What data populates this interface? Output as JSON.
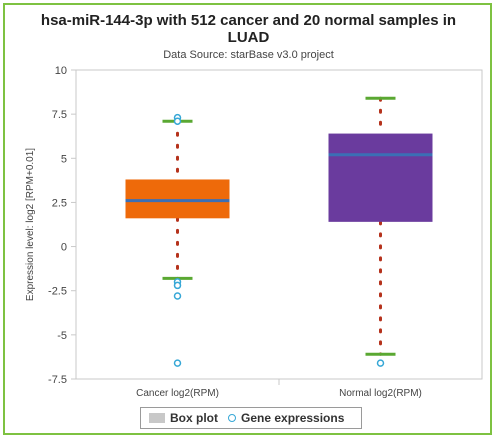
{
  "chart_data": {
    "type": "box",
    "title_lines": [
      "hsa-miR-144-3p with 512 cancer and 20 normal samples in",
      "LUAD"
    ],
    "subtitle": "Data Source: starBase v3.0 project",
    "ylabel": "Expression level: log2 [RPM+0.01]",
    "ylim": [
      -7.5,
      10
    ],
    "yticks": [
      "10",
      "7.5",
      "5",
      "2.5",
      "0",
      "-2.5",
      "-5",
      "-7.5"
    ],
    "ytick_values": [
      10,
      7.5,
      5,
      2.5,
      0,
      -2.5,
      -5,
      -7.5
    ],
    "categories": [
      "Cancer log2(RPM)",
      "Normal log2(RPM)"
    ],
    "boxes": [
      {
        "category": "Cancer log2(RPM)",
        "color": "#ee6a0a",
        "whisker_low": -1.8,
        "q1": 1.6,
        "median": 2.6,
        "q3": 3.8,
        "whisker_high": 7.1,
        "outliers": [
          7.3,
          7.1,
          -2.0,
          -2.2,
          -2.8,
          -6.6
        ]
      },
      {
        "category": "Normal log2(RPM)",
        "color": "#6a3b9e",
        "whisker_low": -6.1,
        "q1": 1.4,
        "median": 5.2,
        "q3": 6.4,
        "whisker_high": 8.4,
        "outliers": [
          -6.6
        ]
      }
    ],
    "median_color": "#3b6fb5",
    "whisker_cap_color": "#5aa832",
    "whisker_line_color": "#b5321c",
    "outlier_color": "#36a7d6",
    "grid": false,
    "legend_position": "bottom"
  },
  "legend": {
    "box_label": "Box plot",
    "points_label": "Gene expressions"
  }
}
